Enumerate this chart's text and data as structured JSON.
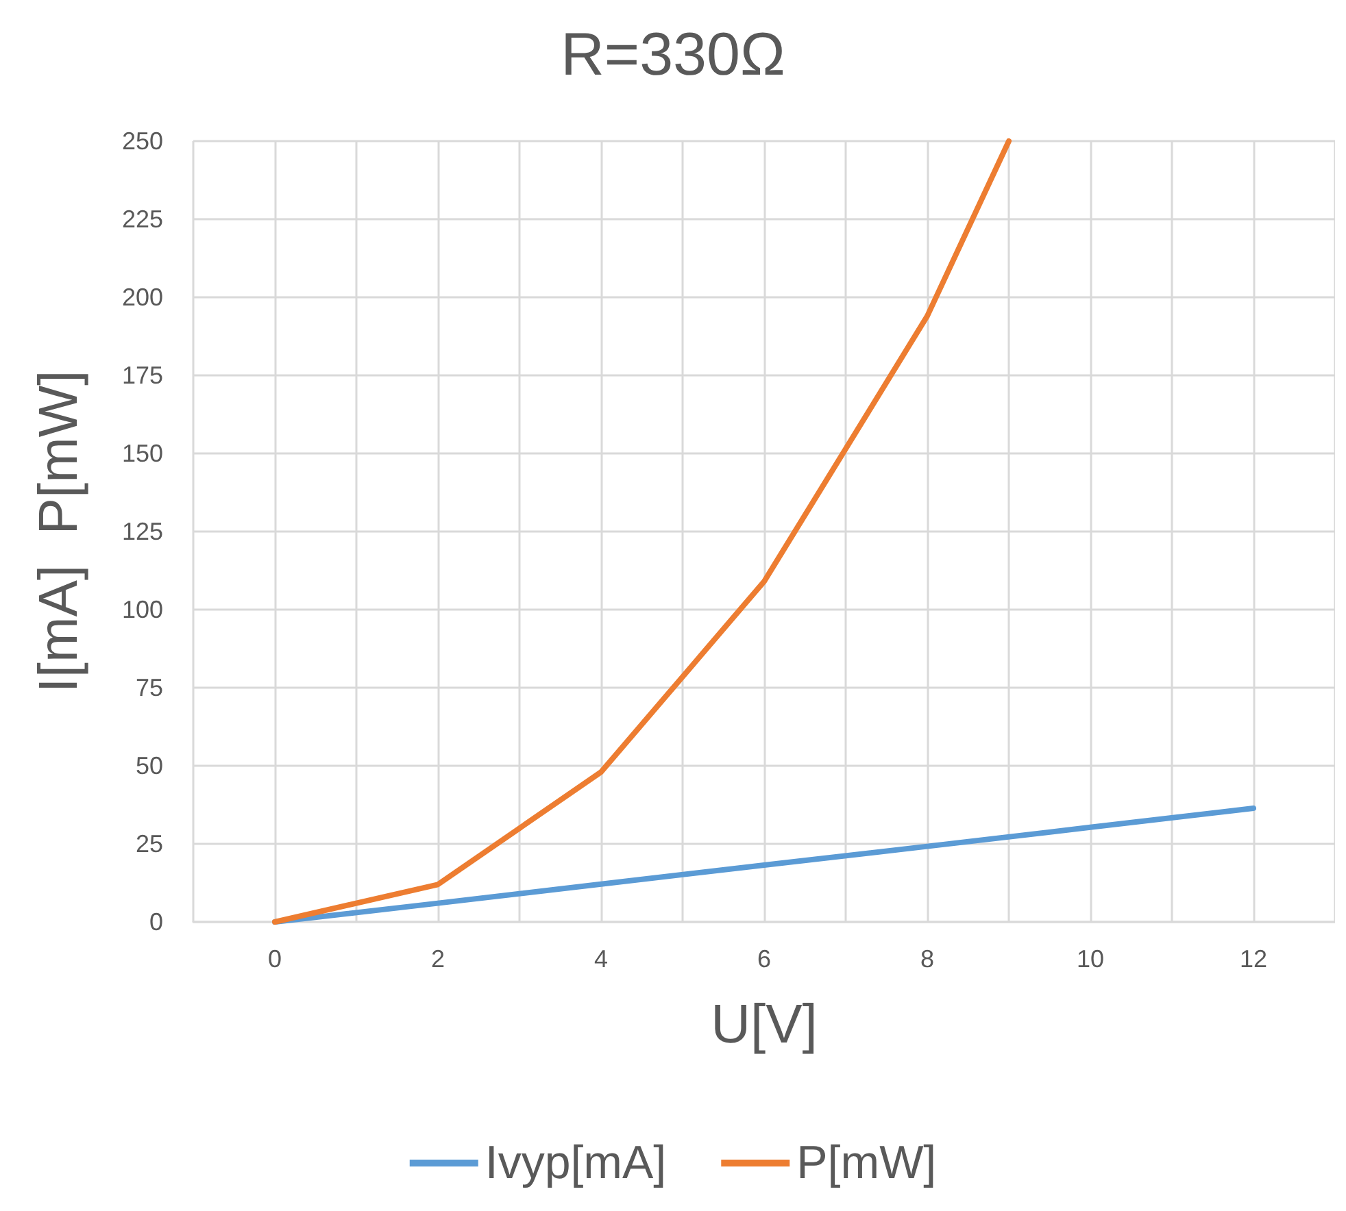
{
  "chart_data": {
    "type": "line",
    "title": "R=330Ω",
    "xlabel": "U[V]",
    "ylabel": "I[mA]  P[mW]",
    "xlim": [
      -1,
      13
    ],
    "xticks": [
      {
        "value": -1,
        "label": null
      },
      0,
      {
        "value": 1,
        "label": null
      },
      2,
      {
        "value": 3,
        "label": null
      },
      4,
      {
        "value": 5,
        "label": null
      },
      6,
      {
        "value": 7,
        "label": null
      },
      8,
      {
        "value": 9,
        "label": null
      },
      10,
      {
        "value": 11,
        "label": null
      },
      12,
      {
        "value": 13,
        "label": null
      }
    ],
    "ylim": [
      0,
      250
    ],
    "yticks": [
      0,
      25,
      50,
      75,
      100,
      125,
      150,
      175,
      200,
      225,
      250
    ],
    "series": [
      {
        "name": "Ivyp[mA]",
        "color": "#5b9bd5",
        "x": [
          0,
          2,
          4,
          6,
          8,
          10,
          12
        ],
        "values": [
          0,
          6,
          12.1,
          18.2,
          24.2,
          30.3,
          36.4
        ]
      },
      {
        "name": "P[mW]",
        "color": "#ed7d31",
        "x": [
          0,
          2,
          4,
          6,
          8,
          9
        ],
        "values": [
          0,
          12,
          48,
          109,
          194,
          250
        ]
      }
    ],
    "grid": true,
    "legend": "bottom",
    "marker": "none",
    "line_style": "solid"
  }
}
